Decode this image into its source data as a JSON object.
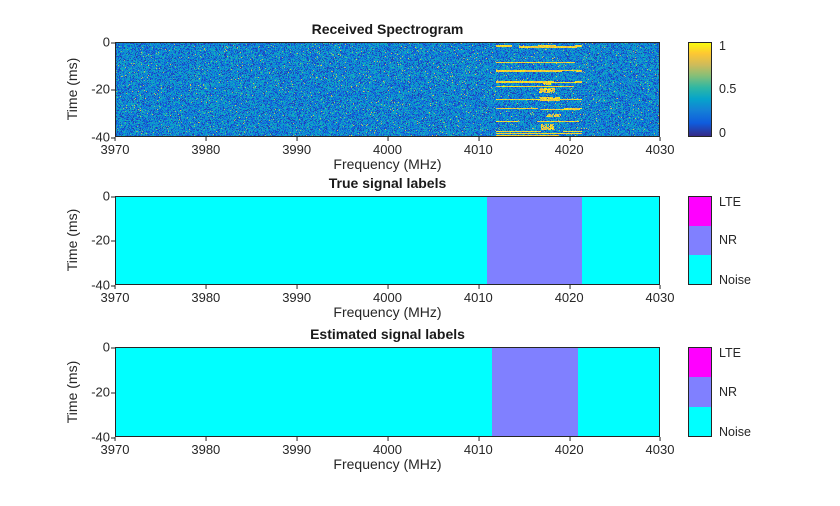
{
  "figure": {
    "background": "#ffffff",
    "text_color": "#262626",
    "xlabel": "Frequency (MHz)",
    "ylabel": "Time (ms)",
    "xticks": [
      "3970",
      "3980",
      "3990",
      "4000",
      "4010",
      "4020",
      "4030"
    ],
    "yticks": [
      "0",
      "-20",
      "-40"
    ]
  },
  "chart_data": [
    {
      "type": "heatmap",
      "title": "Received Spectrogram",
      "xlabel": "Frequency (MHz)",
      "ylabel": "Time (ms)",
      "xlim": [
        3970,
        4030
      ],
      "ylim": [
        -40,
        0
      ],
      "xticks": [
        3970,
        3980,
        3990,
        4000,
        4010,
        4020,
        4030
      ],
      "yticks": [
        0,
        -20,
        -40
      ],
      "colormap": "parula",
      "colorbar": {
        "ticks": [
          "1",
          "0.5",
          "0"
        ],
        "range": [
          0,
          1
        ]
      },
      "content": {
        "background_noise_range": [
          0.05,
          0.45
        ],
        "signal_band_mhz": [
          4012,
          4021.5
        ],
        "signal_power_range": [
          0.75,
          1.0
        ],
        "signal_pattern": "intermittent horizontal bursts in time",
        "noise_seed": 1337
      }
    },
    {
      "type": "heatmap",
      "title": "True signal labels",
      "xlabel": "Frequency (MHz)",
      "ylabel": "Time (ms)",
      "xlim": [
        3970,
        4030
      ],
      "ylim": [
        -40,
        0
      ],
      "classes": [
        "LTE",
        "NR",
        "Noise"
      ],
      "class_colors": {
        "LTE": "#ff00ff",
        "NR": "#8080ff",
        "Noise": "#00ffff"
      },
      "segments": [
        {
          "label": "Noise",
          "from": 3970,
          "to": 4011
        },
        {
          "label": "NR",
          "from": 4011,
          "to": 4021.5
        },
        {
          "label": "Noise",
          "from": 4021.5,
          "to": 4030
        }
      ]
    },
    {
      "type": "heatmap",
      "title": "Estimated signal labels",
      "xlabel": "Frequency (MHz)",
      "ylabel": "Time (ms)",
      "xlim": [
        3970,
        4030
      ],
      "ylim": [
        -40,
        0
      ],
      "classes": [
        "LTE",
        "NR",
        "Noise"
      ],
      "class_colors": {
        "LTE": "#ff00ff",
        "NR": "#8080ff",
        "Noise": "#00ffff"
      },
      "segments": [
        {
          "label": "Noise",
          "from": 3970,
          "to": 4011.5
        },
        {
          "label": "NR",
          "from": 4011.5,
          "to": 4021
        },
        {
          "label": "Noise",
          "from": 4021,
          "to": 4030
        }
      ]
    }
  ]
}
